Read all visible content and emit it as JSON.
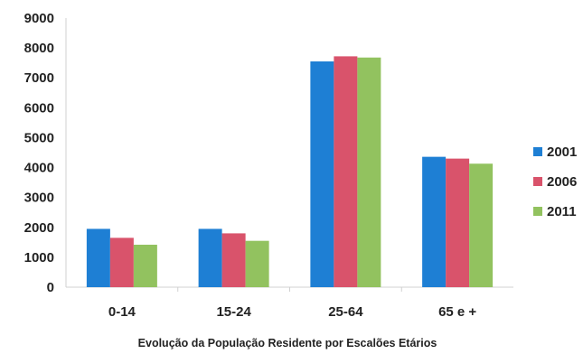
{
  "chart_data": {
    "type": "bar",
    "title": "",
    "xlabel": "Evolução da População Residente por Escalões Etários",
    "ylabel": "",
    "categories": [
      "0-14",
      "15-24",
      "25-64",
      "65 e +"
    ],
    "series": [
      {
        "name": "2001",
        "color": "#1e7fd4",
        "values": [
          1950,
          1950,
          7550,
          4360
        ]
      },
      {
        "name": "2006",
        "color": "#d9536b",
        "values": [
          1650,
          1800,
          7720,
          4300
        ]
      },
      {
        "name": "2011",
        "color": "#92c25f",
        "values": [
          1420,
          1550,
          7680,
          4130
        ]
      }
    ],
    "ylim": [
      0,
      9000
    ],
    "yticks": [
      "0",
      "1000",
      "2000",
      "3000",
      "4000",
      "5000",
      "6000",
      "7000",
      "8000",
      "9000"
    ],
    "grid": false,
    "legend_position": "right"
  }
}
